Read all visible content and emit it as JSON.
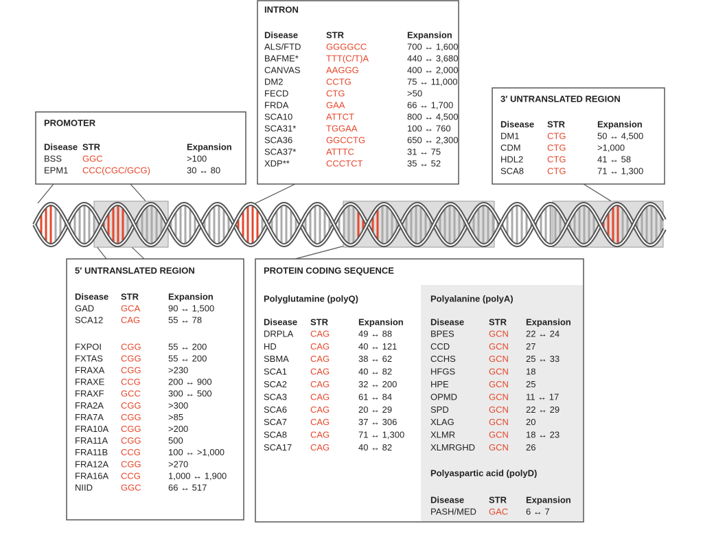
{
  "promoter": {
    "title": "PROMOTER",
    "headers": [
      "Disease",
      "STR",
      "Expansion"
    ],
    "rows": [
      [
        "BSS",
        "GGC",
        ">100"
      ],
      [
        "EPM1",
        "CCC(CGC/GCG)",
        "30 ↔ 80"
      ]
    ]
  },
  "intron": {
    "title": "INTRON",
    "headers": [
      "Disease",
      "STR",
      "Expansion"
    ],
    "rows": [
      [
        "ALS/FTD",
        "GGGGCC",
        "700 ↔ 1,600"
      ],
      [
        "BAFME*",
        "TTT(C/T)A",
        "440 ↔ 3,680"
      ],
      [
        "CANVAS",
        "AAGGG",
        "400 ↔ 2,000"
      ],
      [
        "DM2",
        "CCTG",
        "75 ↔ 11,000"
      ],
      [
        "FECD",
        "CTG",
        ">50"
      ],
      [
        "FRDA",
        "GAA",
        "66 ↔ 1,700"
      ],
      [
        "SCA10",
        "ATTCT",
        "800 ↔ 4,500"
      ],
      [
        "SCA31*",
        "TGGAA",
        "100 ↔ 760"
      ],
      [
        "SCA36",
        "GGCCTG",
        "650 ↔ 2,300"
      ],
      [
        "SCA37*",
        "ATTTC",
        "31 ↔ 75"
      ],
      [
        "XDP**",
        "CCCTCT",
        "35 ↔ 52"
      ]
    ]
  },
  "utr3": {
    "title": "3′ UNTRANSLATED REGION",
    "headers": [
      "Disease",
      "STR",
      "Expansion"
    ],
    "rows": [
      [
        "DM1",
        "CTG",
        "50 ↔ 4,500"
      ],
      [
        "CDM",
        "CTG",
        ">1,000"
      ],
      [
        "HDL2",
        "CTG",
        "41 ↔ 58"
      ],
      [
        "SCA8",
        "CTG",
        "71 ↔ 1,300"
      ]
    ]
  },
  "utr5": {
    "title": "5′ UNTRANSLATED REGION",
    "headers": [
      "Disease",
      "STR",
      "Expansion"
    ],
    "row_groups": [
      [
        [
          "GAD",
          "GCA",
          "90 ↔ 1,500"
        ],
        [
          "SCA12",
          "CAG",
          "55 ↔ 78"
        ]
      ],
      [
        [
          "FXPOI",
          "CGG",
          "55 ↔ 200"
        ],
        [
          "FXTAS",
          "CGG",
          "55 ↔ 200"
        ],
        [
          "FRAXA",
          "CGG",
          ">230"
        ],
        [
          "FRAXE",
          "CCG",
          "200 ↔ 900"
        ],
        [
          "FRAXF",
          "GCC",
          "300 ↔ 500"
        ],
        [
          "FRA2A",
          "CGG",
          ">300"
        ],
        [
          "FRA7A",
          "CGG",
          ">85"
        ],
        [
          "FRA10A",
          "CGG",
          ">200"
        ],
        [
          "FRA11A",
          "CGG",
          "500"
        ],
        [
          "FRA11B",
          "CCG",
          "100 ↔ >1,000"
        ],
        [
          "FRA12A",
          "CGG",
          ">270"
        ],
        [
          "FRA16A",
          "CCG",
          "1,000 ↔ 1,900"
        ],
        [
          "NIID",
          "GGC",
          "66 ↔ 517"
        ]
      ]
    ]
  },
  "coding": {
    "title": "PROTEIN CODING SEQUENCE",
    "polyq": {
      "subtitle": "Polyglutamine (polyQ)",
      "headers": [
        "Disease",
        "STR",
        "Expansion"
      ],
      "rows": [
        [
          "DRPLA",
          "CAG",
          "49 ↔ 88"
        ],
        [
          "HD",
          "CAG",
          "40 ↔ 121"
        ],
        [
          "SBMA",
          "CAG",
          "38 ↔ 62"
        ],
        [
          "SCA1",
          "CAG",
          "40 ↔ 82"
        ],
        [
          "SCA2",
          "CAG",
          "32 ↔ 200"
        ],
        [
          "SCA3",
          "CAG",
          "61 ↔ 84"
        ],
        [
          "SCA6",
          "CAG",
          "20 ↔ 29"
        ],
        [
          "SCA7",
          "CAG",
          "37 ↔ 306"
        ],
        [
          "SCA8",
          "CAG",
          "71 ↔ 1,300"
        ],
        [
          "SCA17",
          "CAG",
          "40 ↔ 82"
        ]
      ]
    },
    "polya": {
      "subtitle": "Polyalanine (polyA)",
      "headers": [
        "Disease",
        "STR",
        "Expansion"
      ],
      "rows": [
        [
          "BPES",
          "GCN",
          "22 ↔ 24"
        ],
        [
          "CCD",
          "GCN",
          "27"
        ],
        [
          "CCHS",
          "GCN",
          "25 ↔ 33"
        ],
        [
          "HFGS",
          "GCN",
          "18"
        ],
        [
          "HPE",
          "GCN",
          "25"
        ],
        [
          "OPMD",
          "GCN",
          "11 ↔ 17"
        ],
        [
          "SPD",
          "GCN",
          "22 ↔ 29"
        ],
        [
          "XLAG",
          "GCN",
          "20"
        ],
        [
          "XLMR",
          "GCN",
          "18 ↔ 23"
        ],
        [
          "XLMRGHD",
          "GCN",
          "26"
        ]
      ]
    },
    "polyd": {
      "subtitle": "Polyaspartic acid  (polyD)",
      "headers": [
        "Disease",
        "STR",
        "Expansion"
      ],
      "rows": [
        [
          "PASH/MED",
          "GAC",
          "6 ↔ 7"
        ]
      ]
    }
  }
}
